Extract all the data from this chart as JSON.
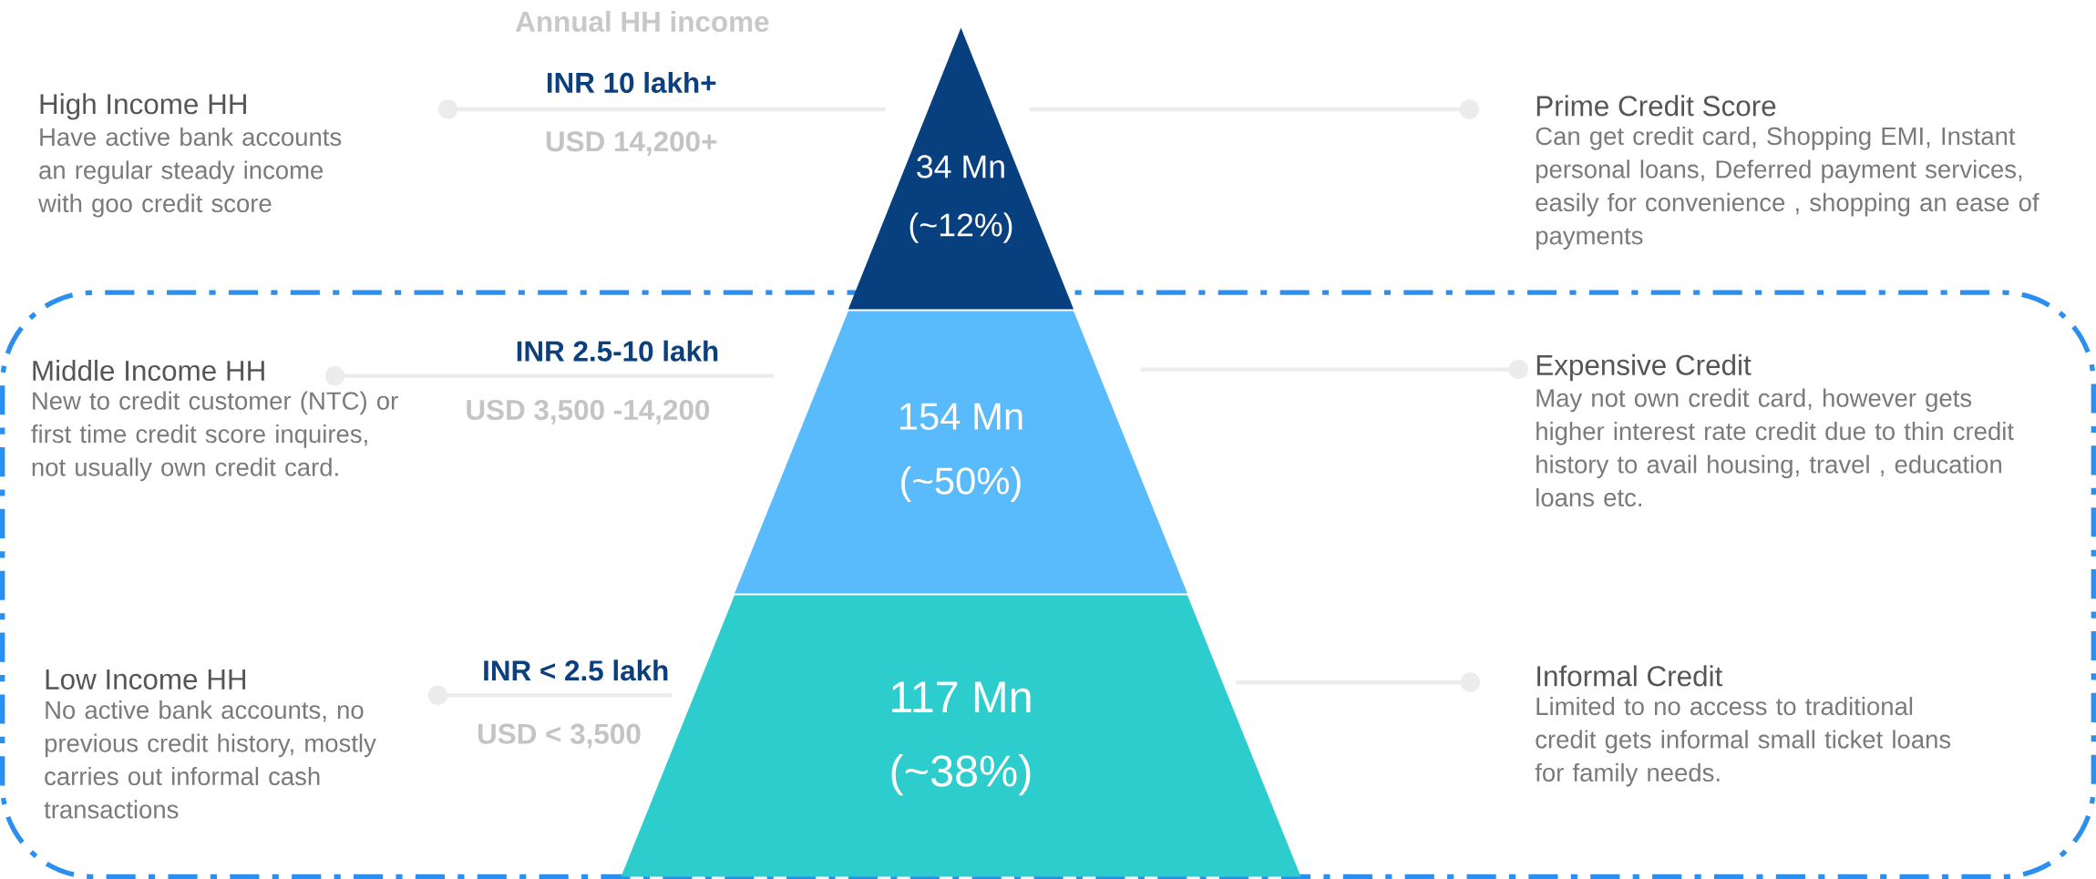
{
  "chart_data": {
    "type": "other",
    "title": "Annual HH income",
    "categories": [
      "INR 10 lakh+",
      "INR 2.5-10 lakh",
      "INR < 2.5 lakh"
    ],
    "values": [
      34,
      154,
      117
    ],
    "data_labels": true,
    "colors": [
      "#073f7f",
      "#59bbfb",
      "#2dcccd"
    ],
    "annotations": [
      "(~12%)",
      "(~50%)",
      "(~38%)",
      "USD 14,200+",
      "USD 3,500 -14,200",
      "USD < 3,500",
      "High Income HH",
      "Have active bank accounts an regular steady income with goo credit score",
      "Middle Income HH",
      "New to credit customer (NTC) or first time credit score inquires, not usually own credit card.",
      "Low Income HH",
      "No active bank accounts, no previous credit history, mostly carries out informal cash transactions",
      "Prime Credit Score",
      "Can get credit card, Shopping EMI, Instant personal loans, Deferred payment services, easily for convenience , shopping an ease of payments",
      "Expensive Credit",
      "May not own credit card, however gets higher interest rate credit due to thin credit history to avail housing, travel , education loans etc.",
      "Informal Credit",
      "Limited to no access to traditional credit gets informal small ticket loans for family needs.",
      "Mn"
    ]
  }
}
